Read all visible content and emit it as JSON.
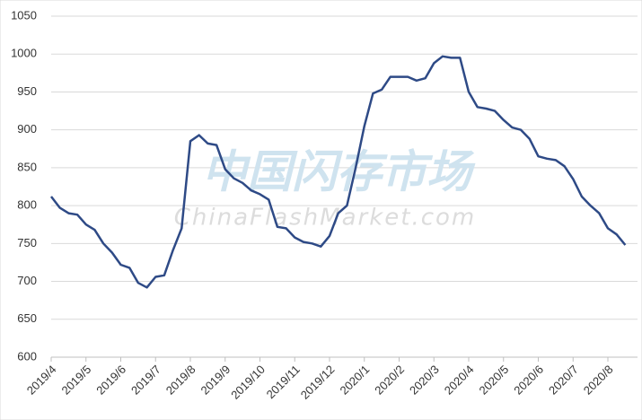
{
  "chart_data": {
    "type": "line",
    "watermark": "中国闪存市场",
    "watermark_sub": "ChinaFlashMarket.com",
    "color": "#2e4a86",
    "grid": true,
    "ylim": [
      600,
      1050
    ],
    "yticks": [
      600,
      650,
      700,
      750,
      800,
      850,
      900,
      950,
      1000,
      1050
    ],
    "categories": [
      "2019/4",
      null,
      null,
      null,
      "2019/5",
      null,
      null,
      null,
      "2019/6",
      null,
      null,
      null,
      "2019/7",
      null,
      null,
      null,
      "2019/8",
      null,
      null,
      null,
      "2019/9",
      null,
      null,
      null,
      "2019/10",
      null,
      null,
      null,
      "2019/11",
      null,
      null,
      null,
      "2019/12",
      null,
      null,
      null,
      "2020/1",
      null,
      null,
      null,
      "2020/2",
      null,
      null,
      null,
      "2020/3",
      null,
      null,
      null,
      "2020/4",
      null,
      null,
      null,
      "2020/5",
      null,
      null,
      null,
      "2020/6",
      null,
      null,
      null,
      "2020/7",
      null,
      null,
      null,
      "2020/8",
      null,
      null
    ],
    "values": [
      812,
      797,
      790,
      788,
      775,
      768,
      750,
      738,
      722,
      718,
      698,
      692,
      706,
      708,
      741,
      770,
      885,
      893,
      882,
      880,
      848,
      836,
      830,
      820,
      815,
      808,
      772,
      770,
      758,
      752,
      750,
      746,
      760,
      790,
      800,
      850,
      905,
      948,
      953,
      970,
      970,
      970,
      965,
      968,
      988,
      997,
      995,
      995,
      950,
      930,
      928,
      925,
      913,
      903,
      900,
      888,
      865,
      862,
      860,
      852,
      835,
      812,
      800,
      790,
      770,
      762,
      748
    ]
  }
}
